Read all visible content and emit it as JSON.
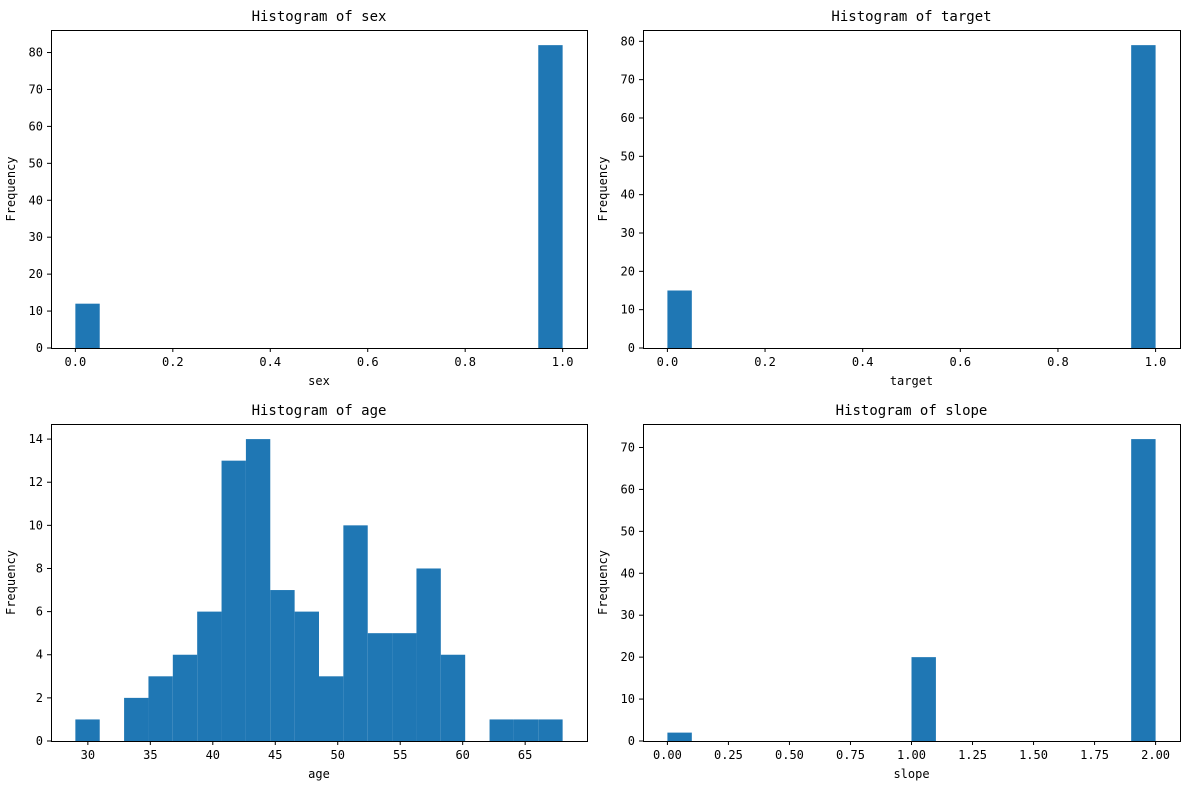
{
  "chart_data": [
    {
      "id": "sex",
      "type": "bar",
      "title": "Histogram of sex",
      "xlabel": "sex",
      "ylabel": "Frequency",
      "bin_edges": [
        0.0,
        0.05,
        0.1,
        0.15,
        0.2,
        0.25,
        0.3,
        0.35,
        0.4,
        0.45,
        0.5,
        0.55,
        0.6,
        0.65,
        0.7,
        0.75,
        0.8,
        0.85,
        0.9,
        0.95,
        1.0
      ],
      "values": [
        12,
        0,
        0,
        0,
        0,
        0,
        0,
        0,
        0,
        0,
        0,
        0,
        0,
        0,
        0,
        0,
        0,
        0,
        0,
        82
      ],
      "xlim": [
        -0.05,
        1.05
      ],
      "ylim": [
        0,
        86.1
      ],
      "xticks": [
        0.0,
        0.2,
        0.4,
        0.6,
        0.8,
        1.0
      ],
      "xtick_labels": [
        "0.0",
        "0.2",
        "0.4",
        "0.6",
        "0.8",
        "1.0"
      ],
      "yticks": [
        0,
        10,
        20,
        30,
        40,
        50,
        60,
        70,
        80
      ],
      "ytick_labels": [
        "0",
        "10",
        "20",
        "30",
        "40",
        "50",
        "60",
        "70",
        "80"
      ]
    },
    {
      "id": "target",
      "type": "bar",
      "title": "Histogram of target",
      "xlabel": "target",
      "ylabel": "Frequency",
      "bin_edges": [
        0.0,
        0.05,
        0.1,
        0.15,
        0.2,
        0.25,
        0.3,
        0.35,
        0.4,
        0.45,
        0.5,
        0.55,
        0.6,
        0.65,
        0.7,
        0.75,
        0.8,
        0.85,
        0.9,
        0.95,
        1.0
      ],
      "values": [
        15,
        0,
        0,
        0,
        0,
        0,
        0,
        0,
        0,
        0,
        0,
        0,
        0,
        0,
        0,
        0,
        0,
        0,
        0,
        79
      ],
      "xlim": [
        -0.05,
        1.05
      ],
      "ylim": [
        0,
        82.95
      ],
      "xticks": [
        0.0,
        0.2,
        0.4,
        0.6,
        0.8,
        1.0
      ],
      "xtick_labels": [
        "0.0",
        "0.2",
        "0.4",
        "0.6",
        "0.8",
        "1.0"
      ],
      "yticks": [
        0,
        10,
        20,
        30,
        40,
        50,
        60,
        70,
        80
      ],
      "ytick_labels": [
        "0",
        "10",
        "20",
        "30",
        "40",
        "50",
        "60",
        "70",
        "80"
      ]
    },
    {
      "id": "age",
      "type": "bar",
      "title": "Histogram of age",
      "xlabel": "age",
      "ylabel": "Frequency",
      "bin_edges": [
        29,
        30.95,
        32.9,
        34.85,
        36.8,
        38.75,
        40.7,
        42.65,
        44.6,
        46.55,
        48.5,
        50.45,
        52.4,
        54.35,
        56.3,
        58.25,
        60.2,
        62.15,
        64.1,
        66.05,
        68
      ],
      "values": [
        1,
        0,
        2,
        3,
        4,
        6,
        13,
        14,
        7,
        6,
        3,
        10,
        5,
        5,
        8,
        4,
        0,
        1,
        1,
        1
      ],
      "xlim": [
        27.05,
        69.95
      ],
      "ylim": [
        0,
        14.7
      ],
      "xticks": [
        30,
        35,
        40,
        45,
        50,
        55,
        60,
        65
      ],
      "xtick_labels": [
        "30",
        "35",
        "40",
        "45",
        "50",
        "55",
        "60",
        "65"
      ],
      "yticks": [
        0,
        2,
        4,
        6,
        8,
        10,
        12,
        14
      ],
      "ytick_labels": [
        "0",
        "2",
        "4",
        "6",
        "8",
        "10",
        "12",
        "14"
      ]
    },
    {
      "id": "slope",
      "type": "bar",
      "title": "Histogram of slope",
      "xlabel": "slope",
      "ylabel": "Frequency",
      "bin_edges": [
        0.0,
        0.1,
        0.2,
        0.3,
        0.4,
        0.5,
        0.6,
        0.7,
        0.8,
        0.9,
        1.0,
        1.1,
        1.2,
        1.3,
        1.4,
        1.5,
        1.6,
        1.7,
        1.8,
        1.9,
        2.0
      ],
      "values": [
        2,
        0,
        0,
        0,
        0,
        0,
        0,
        0,
        0,
        0,
        20,
        0,
        0,
        0,
        0,
        0,
        0,
        0,
        0,
        72
      ],
      "xlim": [
        -0.1,
        2.1
      ],
      "ylim": [
        0,
        75.6
      ],
      "xticks": [
        0.0,
        0.25,
        0.5,
        0.75,
        1.0,
        1.25,
        1.5,
        1.75,
        2.0
      ],
      "xtick_labels": [
        "0.00",
        "0.25",
        "0.50",
        "0.75",
        "1.00",
        "1.25",
        "1.50",
        "1.75",
        "2.00"
      ],
      "yticks": [
        0,
        10,
        20,
        30,
        40,
        50,
        60,
        70
      ],
      "ytick_labels": [
        "0",
        "10",
        "20",
        "30",
        "40",
        "50",
        "60",
        "70"
      ]
    }
  ],
  "style": {
    "bar_color": "#1f77b4",
    "axis_color": "#000000",
    "background": "#ffffff"
  }
}
